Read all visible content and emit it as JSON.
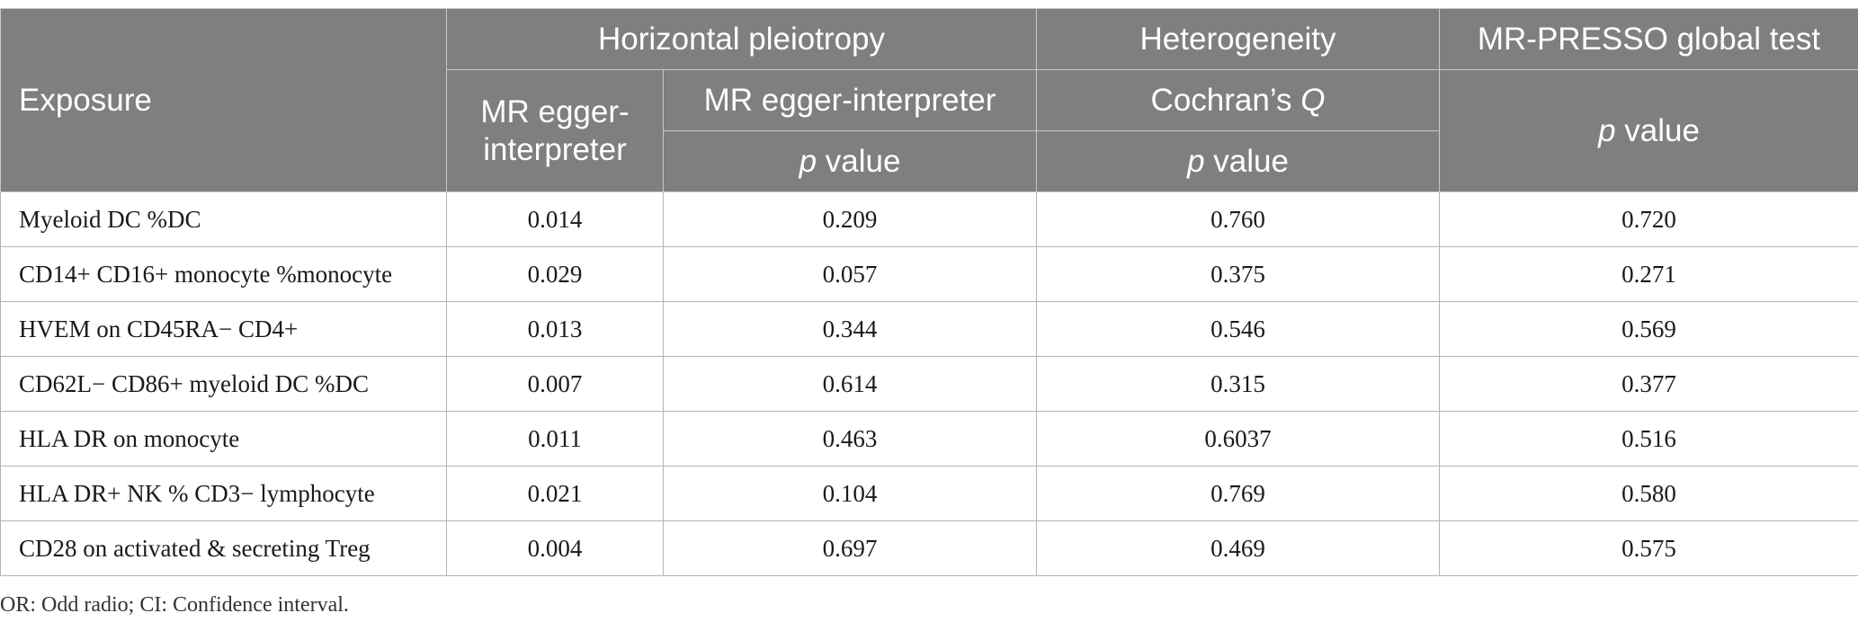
{
  "header": {
    "exposure": "Exposure",
    "group_pleiotropy": "Horizontal pleiotropy",
    "group_heterogeneity": "Heterogeneity",
    "group_presso": "MR-PRESSO global test",
    "col_egger_interpreter": "MR egger-interpreter",
    "col_egger_interpreter_2": "MR egger-interpreter",
    "col_cochran": "Cochran’s",
    "col_cochran_q": "Q",
    "p_letter": "p",
    "value_word": " value"
  },
  "rows": [
    {
      "exposure": "Myeloid DC %DC",
      "egger": "0.014",
      "egger_p": "0.209",
      "cochran_p": "0.760",
      "presso_p": "0.720"
    },
    {
      "exposure": "CD14+ CD16+ monocyte %monocyte",
      "egger": "0.029",
      "egger_p": "0.057",
      "cochran_p": "0.375",
      "presso_p": "0.271"
    },
    {
      "exposure": "HVEM on CD45RA− CD4+",
      "egger": "0.013",
      "egger_p": "0.344",
      "cochran_p": "0.546",
      "presso_p": "0.569"
    },
    {
      "exposure": "CD62L− CD86+ myeloid DC %DC",
      "egger": "0.007",
      "egger_p": "0.614",
      "cochran_p": "0.315",
      "presso_p": "0.377"
    },
    {
      "exposure": "HLA DR on monocyte",
      "egger": "0.011",
      "egger_p": "0.463",
      "cochran_p": "0.6037",
      "presso_p": "0.516"
    },
    {
      "exposure": "HLA DR+ NK % CD3− lymphocyte",
      "egger": "0.021",
      "egger_p": "0.104",
      "cochran_p": "0.769",
      "presso_p": "0.580"
    },
    {
      "exposure": "CD28 on activated & secreting Treg",
      "egger": "0.004",
      "egger_p": "0.697",
      "cochran_p": "0.469",
      "presso_p": "0.575"
    }
  ],
  "footnote": "OR: Odd radio; CI: Confidence interval."
}
